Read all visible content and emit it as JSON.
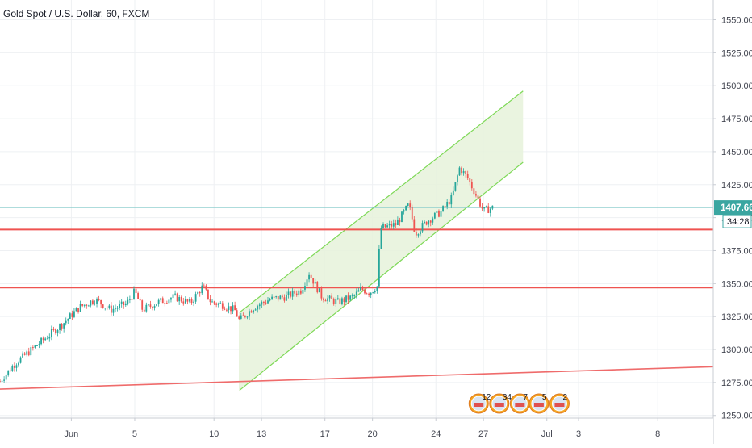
{
  "chart_data": {
    "type": "candlestick",
    "title": "Gold Spot / U.S. Dollar, 60, FXCM",
    "y_ticks": [
      1250,
      1275,
      1300,
      1325,
      1350,
      1375,
      1400,
      1425,
      1450,
      1475,
      1500,
      1525,
      1550
    ],
    "y_tick_labels": [
      "1250.00",
      "1275.00",
      "1300.00",
      "1325.00",
      "1350.00",
      "1375.00",
      "1400.00",
      "1425.00",
      "1450.00",
      "1475.00",
      "1500.00",
      "1525.00",
      "1550.00"
    ],
    "ylim": [
      1248,
      1565
    ],
    "x_tick_labels": [
      "Jun",
      "5",
      "10",
      "13",
      "17",
      "20",
      "24",
      "27",
      "Jul",
      "3",
      "8"
    ],
    "x_tick_days": [
      1,
      5,
      10,
      13,
      17,
      20,
      24,
      27,
      31,
      33,
      38
    ],
    "xlim_day": [
      -3.5,
      41.5
    ],
    "last_price": "1407.66",
    "countdown": "34:28",
    "price_path": [
      [
        -3.5,
        1276
      ],
      [
        -2.5,
        1290
      ],
      [
        -1.5,
        1300
      ],
      [
        -0.5,
        1310
      ],
      [
        0.5,
        1320
      ],
      [
        1.5,
        1332
      ],
      [
        2.5,
        1338
      ],
      [
        3.5,
        1330
      ],
      [
        4.5,
        1335
      ],
      [
        5.0,
        1344
      ],
      [
        5.5,
        1330
      ],
      [
        6.5,
        1336
      ],
      [
        7.5,
        1340
      ],
      [
        8.5,
        1335
      ],
      [
        9.3,
        1348
      ],
      [
        9.8,
        1336
      ],
      [
        10.5,
        1334
      ],
      [
        11.3,
        1330
      ],
      [
        11.6,
        1322
      ],
      [
        12.5,
        1332
      ],
      [
        13.5,
        1338
      ],
      [
        14.5,
        1340
      ],
      [
        15.5,
        1345
      ],
      [
        16.0,
        1358
      ],
      [
        16.8,
        1340
      ],
      [
        17.8,
        1336
      ],
      [
        18.8,
        1340
      ],
      [
        19.3,
        1346
      ],
      [
        19.8,
        1343
      ],
      [
        20.3,
        1348
      ],
      [
        20.5,
        1392
      ],
      [
        21.5,
        1395
      ],
      [
        22.3,
        1410
      ],
      [
        22.7,
        1388
      ],
      [
        23.5,
        1398
      ],
      [
        24.3,
        1404
      ],
      [
        25.0,
        1415
      ],
      [
        25.5,
        1438
      ],
      [
        26.0,
        1430
      ],
      [
        26.5,
        1418
      ],
      [
        27.0,
        1405
      ],
      [
        27.6,
        1407.66
      ]
    ],
    "channel": {
      "upper": [
        [
          11.6,
          1328
        ],
        [
          29.5,
          1496
        ]
      ],
      "lower": [
        [
          11.6,
          1269
        ],
        [
          29.5,
          1442
        ]
      ]
    },
    "horizontal_lines": [
      {
        "price": 1407.66,
        "color": "#7ec8c8"
      },
      {
        "price": 1391,
        "color": "#ef5350"
      },
      {
        "price": 1347,
        "color": "#ef5350"
      }
    ],
    "trend_line": [
      [
        -3.5,
        1270
      ],
      [
        41.5,
        1287
      ]
    ],
    "event_flags": [
      {
        "label": "12",
        "day": 26.7
      },
      {
        "label": "34",
        "day": 28.0
      },
      {
        "label": "7",
        "day": 29.3
      },
      {
        "label": "5",
        "day": 30.5
      },
      {
        "label": "2",
        "day": 31.8
      }
    ],
    "colors": {
      "up": "#26a69a",
      "down": "#ef5350",
      "channel_line": "#7ed957",
      "channel_fill": "#e6f2da",
      "grid": "#eef0f3",
      "last_price_label_bg": "#3aa6a1",
      "countdown_bg": "#ffffff"
    }
  }
}
